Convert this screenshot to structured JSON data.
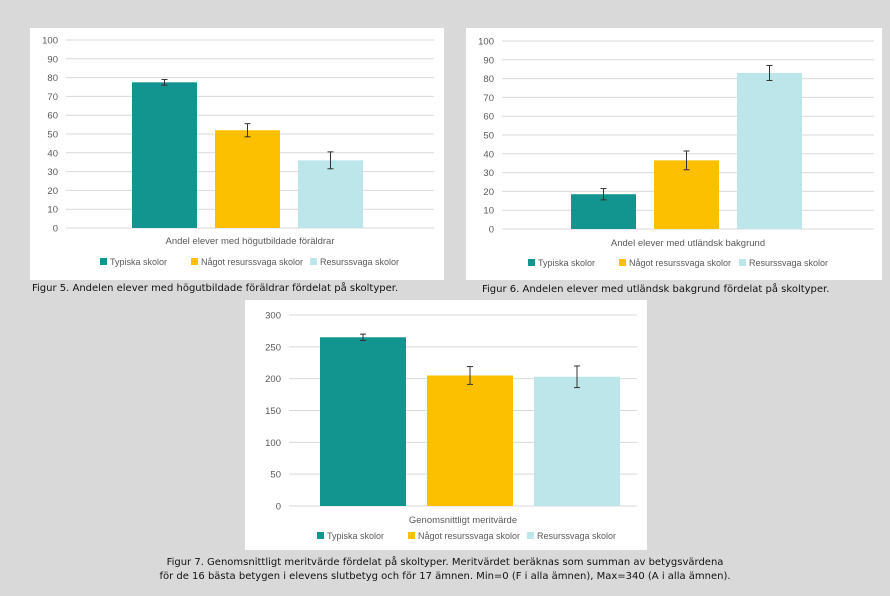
{
  "colors": {
    "typiska": "#12958f",
    "nagot": "#fcc000",
    "resurssvaga": "#bce6ea",
    "grid": "#d9d9d9",
    "axis_text": "#595959"
  },
  "legend": [
    "Typiska skolor",
    "Något resurssvaga skolor",
    "Resurssvaga skolor"
  ],
  "captions": {
    "fig5": "Figur 5. Andelen elever med högutbildade föräldrar fördelat på skoltyper.",
    "fig6": "Figur 6. Andelen elever med utländsk bakgrund fördelat på skoltyper.",
    "fig7_line1": "Figur 7. Genomsnittligt meritvärde fördelat på skoltyper. Meritvärdet beräknas som summan av betygsvärdena",
    "fig7_line2": "för de 16 bästa betygen i elevens slutbetyg och för 17 ämnen. Min=0 (F i alla ämnen), Max=340 (A i alla ämnen)."
  },
  "chart_data": [
    {
      "type": "bar",
      "xlabel": "Andel  elever med högutbildade föräldrar",
      "categories": [
        "Typiska skolor",
        "Något resurssvaga skolor",
        "Resurssvaga skolor"
      ],
      "values": [
        77.5,
        52,
        36
      ],
      "errors": [
        1.5,
        3.5,
        4.5
      ],
      "ylim": [
        0,
        100
      ],
      "yticks": [
        "0",
        "10",
        "20",
        "30",
        "40",
        "50",
        "60",
        "70",
        "80",
        "90",
        "100"
      ],
      "grid": true,
      "legend_position": "bottom"
    },
    {
      "type": "bar",
      "xlabel": "Andel elever med utländsk bakgrund",
      "categories": [
        "Typiska skolor",
        "Något resurssvaga skolor",
        "Resurssvaga skolor"
      ],
      "values": [
        18.5,
        36.5,
        83
      ],
      "errors": [
        3,
        5,
        4
      ],
      "ylim": [
        0,
        100
      ],
      "yticks": [
        "0",
        "10",
        "20",
        "30",
        "40",
        "50",
        "60",
        "70",
        "80",
        "90",
        "100"
      ],
      "grid": true,
      "legend_position": "bottom"
    },
    {
      "type": "bar",
      "xlabel": "Genomsnittligt meritvärde",
      "categories": [
        "Typiska skolor",
        "Något resurssvaga skolor",
        "Resurssvaga skolor"
      ],
      "values": [
        265,
        205,
        203
      ],
      "errors": [
        5,
        14,
        17
      ],
      "ylim": [
        0,
        300
      ],
      "yticks": [
        "0",
        "50",
        "100",
        "150",
        "200",
        "250",
        "300"
      ],
      "grid": true,
      "legend_position": "bottom"
    }
  ]
}
